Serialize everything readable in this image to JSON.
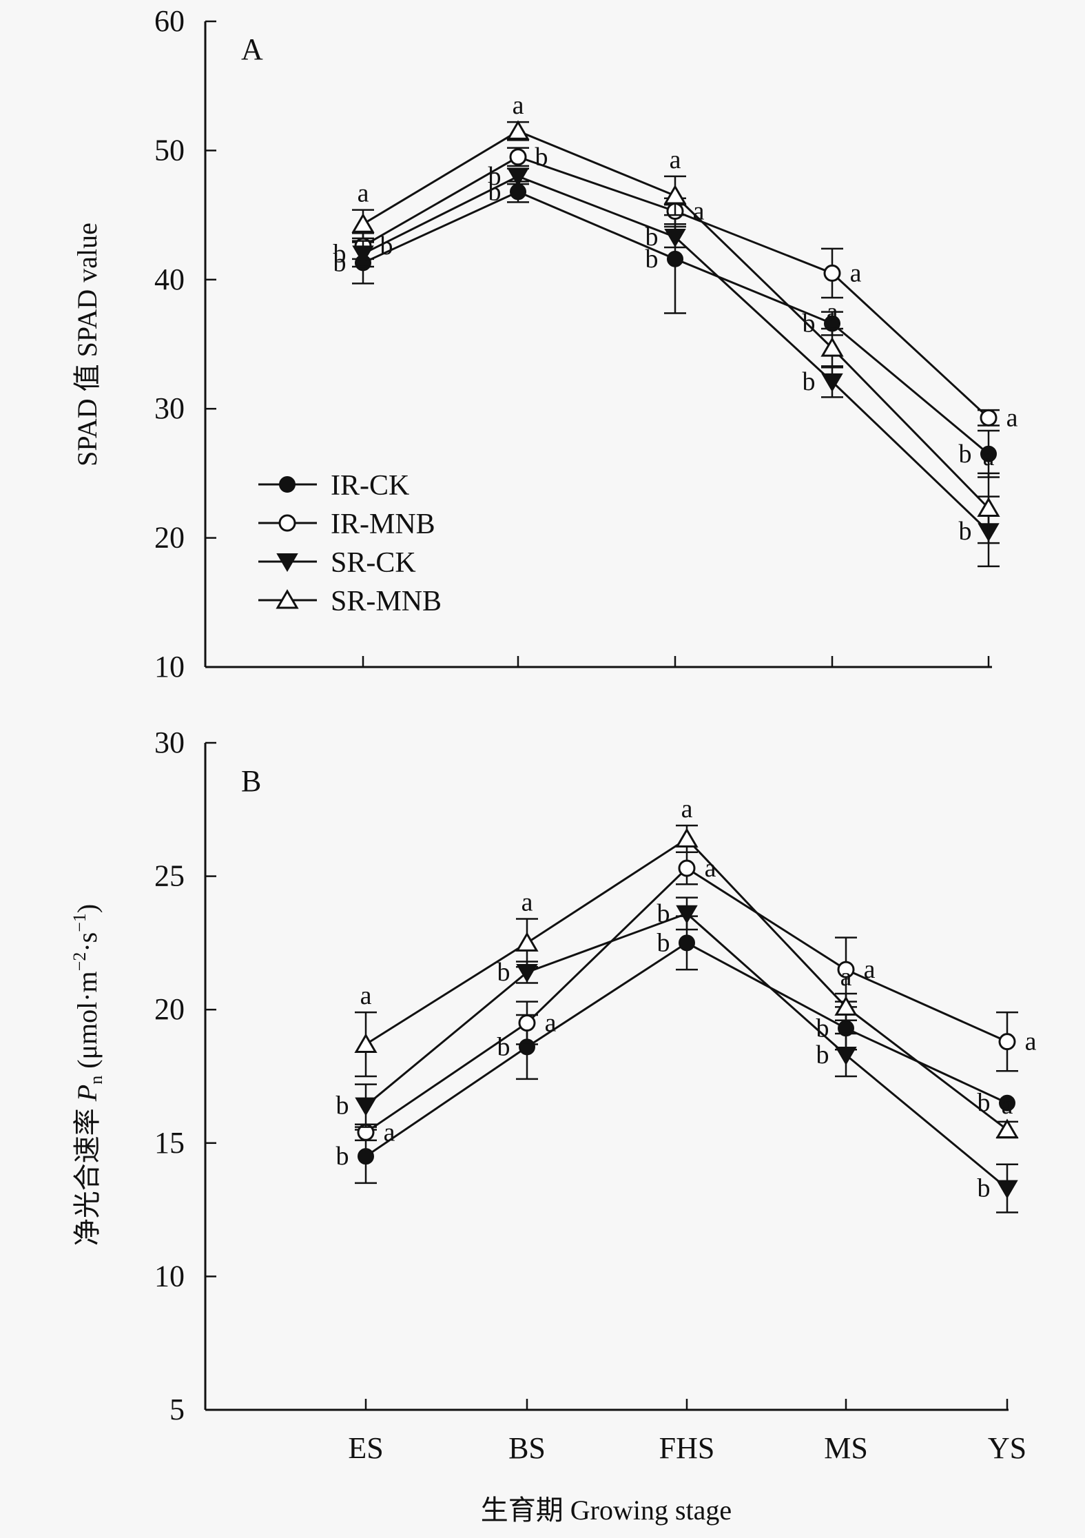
{
  "chart_data": [
    {
      "type": "line",
      "panel_label": "A",
      "ylabel": "SPAD 值 SPAD value",
      "xlabel": "",
      "categories": [
        "ES",
        "BS",
        "FHS",
        "MS",
        "YS"
      ],
      "ylim": [
        10,
        60
      ],
      "yticks": [
        10,
        20,
        30,
        40,
        50,
        60
      ],
      "grid": false,
      "legend": {
        "placement": "left-middle",
        "entries": [
          "IR-CK",
          "IR-MNB",
          "SR-CK",
          "SR-MNB"
        ]
      },
      "series": [
        {
          "name": "IR-CK",
          "marker": "filled-circle",
          "values": [
            41.3,
            46.8,
            41.6,
            36.6,
            26.5
          ],
          "errors": [
            1.6,
            0.8,
            4.2,
            0.9,
            1.8
          ],
          "letters": [
            "b",
            "b",
            "b",
            "b",
            "b"
          ]
        },
        {
          "name": "IR-MNB",
          "marker": "open-circle",
          "values": [
            42.6,
            49.5,
            45.3,
            40.5,
            29.3
          ],
          "errors": [
            1.0,
            0.7,
            1.0,
            1.9,
            0.6
          ],
          "letters": [
            "b",
            "b",
            "a",
            "a",
            "a"
          ]
        },
        {
          "name": "SR-CK",
          "marker": "filled-triangle-down",
          "values": [
            42.0,
            48.0,
            43.3,
            32.1,
            20.5
          ],
          "errors": [
            1.0,
            0.6,
            0.8,
            1.2,
            2.7
          ],
          "letters": [
            "b",
            "b",
            "b",
            "b",
            "b"
          ]
        },
        {
          "name": "SR-MNB",
          "marker": "open-triangle-up",
          "values": [
            44.3,
            51.5,
            46.5,
            34.7,
            22.3
          ],
          "errors": [
            1.1,
            0.7,
            1.5,
            1.5,
            2.7
          ],
          "letters": [
            "a",
            "a",
            "a",
            "a",
            "a"
          ]
        }
      ]
    },
    {
      "type": "line",
      "panel_label": "B",
      "ylabel": "净光合速率 Pn (μmol·m⁻²·s⁻¹)",
      "xlabel": "生育期 Growing stage",
      "categories": [
        "ES",
        "BS",
        "FHS",
        "MS",
        "YS"
      ],
      "ylim": [
        5,
        30
      ],
      "yticks": [
        5,
        10,
        15,
        20,
        25,
        30
      ],
      "grid": false,
      "series": [
        {
          "name": "IR-CK",
          "marker": "filled-circle",
          "values": [
            14.5,
            18.6,
            22.5,
            19.3,
            16.5
          ],
          "errors": [
            1.0,
            1.2,
            1.0,
            0.8,
            0.0
          ],
          "letters": [
            "b",
            "b",
            "b",
            "b",
            "b"
          ]
        },
        {
          "name": "IR-MNB",
          "marker": "open-circle",
          "values": [
            15.4,
            19.5,
            25.3,
            21.5,
            18.8
          ],
          "errors": [
            0.3,
            0.8,
            0.6,
            1.2,
            1.1
          ],
          "letters": [
            "a",
            "a",
            "a",
            "a",
            "a"
          ]
        },
        {
          "name": "SR-CK",
          "marker": "filled-triangle-down",
          "values": [
            16.4,
            21.4,
            23.6,
            18.3,
            13.3
          ],
          "errors": [
            0.8,
            0.4,
            0.6,
            0.8,
            0.9
          ],
          "letters": [
            "b",
            "b",
            "b",
            "b",
            "b"
          ]
        },
        {
          "name": "SR-MNB",
          "marker": "open-triangle-up",
          "values": [
            18.7,
            22.5,
            26.4,
            20.1,
            15.5
          ],
          "errors": [
            1.2,
            0.9,
            0.5,
            0.5,
            0.3
          ],
          "letters": [
            "a",
            "a",
            "a",
            "a",
            "a"
          ]
        }
      ]
    }
  ],
  "labels": {
    "panel_a": "A",
    "panel_b": "B",
    "ylabel_a": "SPAD 值 SPAD value",
    "ylabel_b_cn": "净光合速率 ",
    "ylabel_b_sym": "P",
    "ylabel_b_sub": "n",
    "ylabel_b_unit1": " (μmol·m",
    "ylabel_b_sup1": "−2",
    "ylabel_b_unit2": "·s",
    "ylabel_b_sup2": "−1",
    "ylabel_b_unit3": ")",
    "xlabel": "生育期 Growing stage"
  }
}
